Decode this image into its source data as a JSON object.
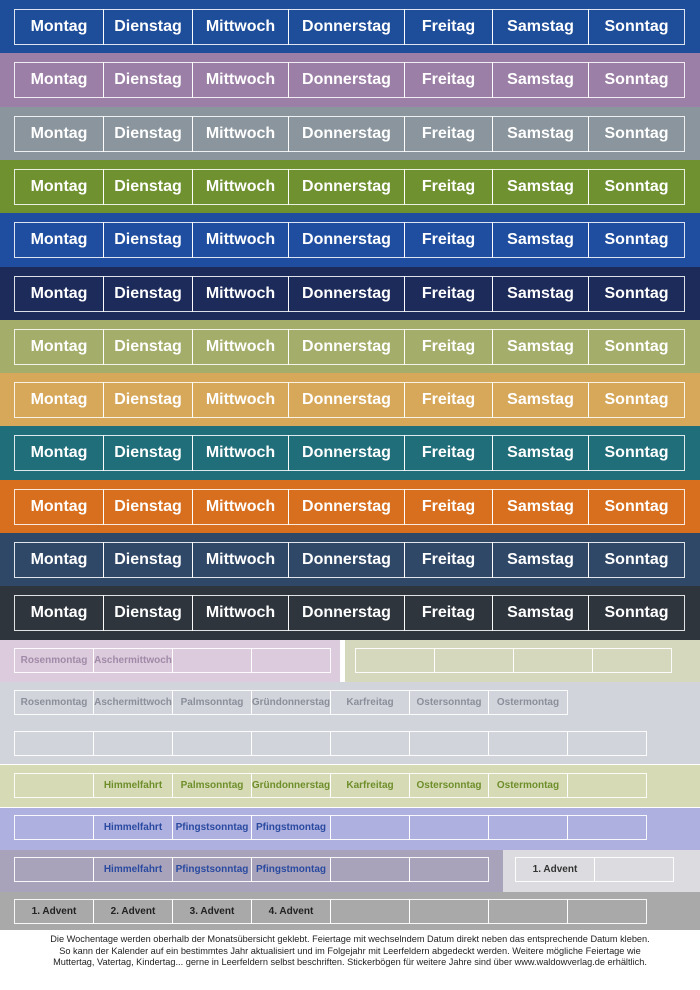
{
  "weekday_strips": [
    {
      "color": "#1e4d9a",
      "days": [
        "Montag",
        "Dienstag",
        "Mittwoch",
        "Donnerstag",
        "Freitag",
        "Samstag",
        "Sonntag"
      ]
    },
    {
      "color": "#9c7fa6",
      "days": [
        "Montag",
        "Dienstag",
        "Mittwoch",
        "Donnerstag",
        "Freitag",
        "Samstag",
        "Sonntag"
      ]
    },
    {
      "color": "#8a959d",
      "days": [
        "Montag",
        "Dienstag",
        "Mittwoch",
        "Donnerstag",
        "Freitag",
        "Samstag",
        "Sonntag"
      ]
    },
    {
      "color": "#6f9130",
      "days": [
        "Montag",
        "Dienstag",
        "Mittwoch",
        "Donnerstag",
        "Freitag",
        "Samstag",
        "Sonntag"
      ]
    },
    {
      "color": "#1f4ea0",
      "days": [
        "Montag",
        "Dienstag",
        "Mittwoch",
        "Donnerstag",
        "Freitag",
        "Samstag",
        "Sonntag"
      ]
    },
    {
      "color": "#1d2b5a",
      "days": [
        "Montag",
        "Dienstag",
        "Mittwoch",
        "Donnerstag",
        "Freitag",
        "Samstag",
        "Sonntag"
      ]
    },
    {
      "color": "#a4ad6a",
      "days": [
        "Montag",
        "Dienstag",
        "Mittwoch",
        "Donnerstag",
        "Freitag",
        "Samstag",
        "Sonntag"
      ]
    },
    {
      "color": "#d7a85a",
      "days": [
        "Montag",
        "Dienstag",
        "Mittwoch",
        "Donnerstag",
        "Freitag",
        "Samstag",
        "Sonntag"
      ]
    },
    {
      "color": "#1f6e7a",
      "days": [
        "Montag",
        "Dienstag",
        "Mittwoch",
        "Donnerstag",
        "Freitag",
        "Samstag",
        "Sonntag"
      ]
    },
    {
      "color": "#d86f1e",
      "days": [
        "Montag",
        "Dienstag",
        "Mittwoch",
        "Donnerstag",
        "Freitag",
        "Samstag",
        "Sonntag"
      ]
    },
    {
      "color": "#2f4868",
      "days": [
        "Montag",
        "Dienstag",
        "Mittwoch",
        "Donnerstag",
        "Freitag",
        "Samstag",
        "Sonntag"
      ]
    },
    {
      "color": "#2e353d",
      "days": [
        "Montag",
        "Dienstag",
        "Mittwoch",
        "Donnerstag",
        "Freitag",
        "Samstag",
        "Sonntag"
      ]
    }
  ],
  "holiday_panels": [
    {
      "color": "#dccbdc",
      "text_color": "#a08aa8",
      "cells": [
        "Rosenmontag",
        "Aschermittwoch",
        null,
        null
      ]
    },
    {
      "color": "#d5d8bc",
      "text_color": "#8a8f70",
      "cells": [
        null,
        null,
        null,
        null
      ]
    },
    {
      "color": "#d2d4dc",
      "text_color": "#8a8f99",
      "cells": [
        "Rosenmontag",
        "Aschermittwoch",
        "Palmsonntag",
        "Gründonnerstag",
        "Karfreitag",
        "Ostersonntag",
        "Ostermontag"
      ]
    },
    {
      "color": "#d2d4dc",
      "text_color": "#8a8f99",
      "cells": [
        null,
        null,
        null,
        null,
        null,
        null,
        null,
        null
      ]
    },
    {
      "color": "#d6dbb6",
      "text_color": "#6e8e2a",
      "cells": [
        null,
        "Himmelfahrt",
        "Palmsonntag",
        "Gründonnerstag",
        "Karfreitag",
        "Ostersonntag",
        "Ostermontag",
        null
      ]
    },
    {
      "color": "#aeb0e0",
      "text_color": "#2a4aa0",
      "cells": [
        null,
        "Himmelfahrt",
        "Pfingstsonntag",
        "Pfingstmontag",
        null,
        null,
        null,
        null
      ]
    },
    {
      "color": "#a8a3bb",
      "text_color": "#2a4aa0",
      "cells": [
        null,
        "Himmelfahrt",
        "Pfingstsonntag",
        "Pfingstmontag",
        null,
        null
      ]
    },
    {
      "color": "#dcdce0",
      "text_color": "#333333",
      "cells": [
        "1. Advent",
        null
      ]
    },
    {
      "color": "#a9a9a9",
      "text_color": "#222222",
      "cells": [
        "1. Advent",
        "2. Advent",
        "3. Advent",
        "4. Advent",
        null,
        null,
        null,
        null
      ]
    }
  ],
  "footer": {
    "lines": [
      "Die Wochentage werden oberhalb der Monatsübersicht geklebt. Feiertage mit wechselndem Datum direkt neben das entsprechende Datum kleben.",
      "So kann der Kalender auf ein bestimmtes Jahr aktualisiert und im Folgejahr mit Leerfeldern abgedeckt werden. Weitere mögliche Feiertage wie",
      "Muttertag, Vatertag, Kindertag... gerne in Leerfeldern selbst beschriften. Stickerbögen für weitere Jahre sind über www.waldowverlag.de erhältlich."
    ]
  }
}
